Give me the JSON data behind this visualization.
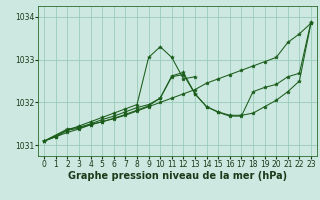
{
  "xlabel": "Graphe pression niveau de la mer (hPa)",
  "background_color": "#cce8e0",
  "grid_color": "#99ccbb",
  "line_color": "#1a5c1a",
  "marker": "*",
  "xlim": [
    -0.5,
    23.5
  ],
  "ylim": [
    1030.75,
    1034.25
  ],
  "yticks": [
    1031,
    1032,
    1033,
    1034
  ],
  "xticks": [
    0,
    1,
    2,
    3,
    4,
    5,
    6,
    7,
    8,
    9,
    10,
    11,
    12,
    13,
    14,
    15,
    16,
    17,
    18,
    19,
    20,
    21,
    22,
    23
  ],
  "line1_x": [
    0,
    1,
    2,
    3,
    4,
    5,
    6,
    7,
    8,
    9,
    10,
    11,
    12,
    13
  ],
  "line1_y": [
    1031.1,
    1031.2,
    1031.35,
    1031.45,
    1031.55,
    1031.65,
    1031.75,
    1031.85,
    1031.95,
    1033.05,
    1033.3,
    1033.05,
    1032.55,
    1032.6
  ],
  "line2_x": [
    0,
    1,
    2,
    3,
    4,
    5,
    6,
    7,
    8,
    9,
    10,
    11,
    12,
    13,
    14,
    15,
    16,
    17,
    18,
    19,
    20,
    21,
    22,
    23
  ],
  "line2_y": [
    1031.1,
    1031.2,
    1031.3,
    1031.38,
    1031.48,
    1031.55,
    1031.62,
    1031.7,
    1031.8,
    1031.9,
    1032.0,
    1032.1,
    1032.2,
    1032.3,
    1032.45,
    1032.55,
    1032.65,
    1032.75,
    1032.85,
    1032.95,
    1033.05,
    1033.4,
    1033.6,
    1033.85
  ],
  "line3_x": [
    0,
    2,
    3,
    4,
    5,
    6,
    7,
    8,
    9,
    10,
    11,
    12,
    13,
    14,
    15,
    16,
    17,
    18,
    19,
    20,
    21,
    22,
    23
  ],
  "line3_y": [
    1031.1,
    1031.35,
    1031.4,
    1031.48,
    1031.55,
    1031.63,
    1031.72,
    1031.82,
    1031.92,
    1032.1,
    1032.6,
    1032.65,
    1032.2,
    1031.9,
    1031.78,
    1031.7,
    1031.7,
    1031.75,
    1031.9,
    1032.05,
    1032.25,
    1032.5,
    1033.85
  ],
  "line4_x": [
    0,
    2,
    3,
    4,
    5,
    6,
    7,
    8,
    9,
    10,
    11,
    12,
    13,
    14,
    15,
    16,
    17,
    18,
    19,
    20,
    21,
    22,
    23
  ],
  "line4_y": [
    1031.1,
    1031.38,
    1031.42,
    1031.5,
    1031.6,
    1031.68,
    1031.78,
    1031.88,
    1031.95,
    1032.1,
    1032.62,
    1032.7,
    1032.2,
    1031.9,
    1031.77,
    1031.68,
    1031.68,
    1032.25,
    1032.35,
    1032.42,
    1032.6,
    1032.68,
    1033.88
  ],
  "xlabel_fontsize": 7,
  "tick_fontsize": 5.5,
  "fig_width": 3.2,
  "fig_height": 2.0,
  "dpi": 100
}
